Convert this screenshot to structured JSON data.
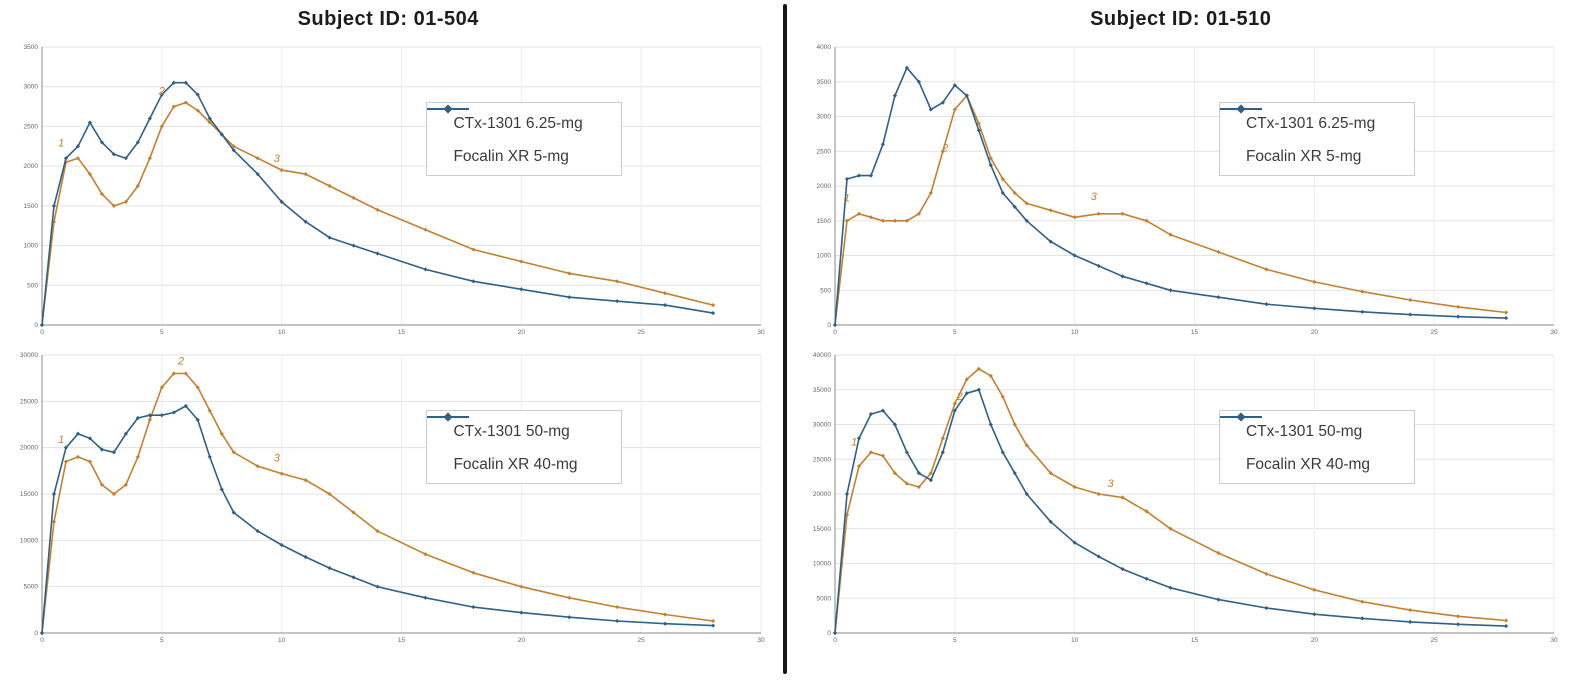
{
  "columns": [
    {
      "title": "Subject ID: 01-504"
    },
    {
      "title": "Subject ID: 01-510"
    }
  ],
  "colors": {
    "ctx_orange": "#c5802e",
    "focalin_blue": "#2e6089",
    "grid": "#e3e3e3",
    "grid_vertical": "#ececec",
    "axis": "#8a8a8a",
    "tick_text": "#666666",
    "annotation": "#c5802e"
  },
  "chart_data": [
    {
      "type": "line",
      "subject": "01-504",
      "title": "",
      "xlabel": "",
      "ylabel": "",
      "xlim": [
        0,
        30
      ],
      "xticks": [
        0,
        5,
        10,
        15,
        20,
        25,
        30
      ],
      "ylim": [
        0,
        3500
      ],
      "yticks": [
        0,
        500,
        1000,
        1500,
        2000,
        2500,
        3000,
        3500
      ],
      "grid": true,
      "legend_position": "center-right",
      "x": [
        0,
        0.5,
        1,
        1.5,
        2,
        2.5,
        3,
        3.5,
        4,
        4.5,
        5,
        5.5,
        6,
        6.5,
        7,
        7.5,
        8,
        9,
        10,
        11,
        12,
        13,
        14,
        16,
        18,
        20,
        22,
        24,
        26,
        28
      ],
      "series": [
        {
          "name": "CTx-1301 6.25-mg",
          "color": "#c5802e",
          "values": [
            0,
            1300,
            2050,
            2100,
            1900,
            1650,
            1500,
            1550,
            1750,
            2100,
            2500,
            2750,
            2800,
            2700,
            2550,
            2400,
            2250,
            2100,
            1950,
            1900,
            1750,
            1600,
            1450,
            1200,
            950,
            800,
            650,
            550,
            400,
            250
          ]
        },
        {
          "name": "Focalin XR 5-mg",
          "color": "#2e6089",
          "values": [
            0,
            1500,
            2100,
            2250,
            2550,
            2300,
            2150,
            2100,
            2300,
            2600,
            2900,
            3050,
            3050,
            2900,
            2600,
            2400,
            2200,
            1900,
            1550,
            1300,
            1100,
            1000,
            900,
            700,
            550,
            450,
            350,
            300,
            250,
            150
          ]
        }
      ],
      "annotations": [
        {
          "text": "1",
          "x": 0.8,
          "y": 2250
        },
        {
          "text": "2",
          "x": 5.0,
          "y": 2900
        },
        {
          "text": "3",
          "x": 9.8,
          "y": 2050
        }
      ]
    },
    {
      "type": "line",
      "subject": "01-504",
      "title": "",
      "xlabel": "",
      "ylabel": "",
      "xlim": [
        0,
        30
      ],
      "xticks": [
        0,
        5,
        10,
        15,
        20,
        25,
        30
      ],
      "ylim": [
        0,
        30000
      ],
      "yticks": [
        0,
        5000,
        10000,
        15000,
        20000,
        25000,
        30000
      ],
      "grid": true,
      "legend_position": "center-right",
      "x": [
        0,
        0.5,
        1,
        1.5,
        2,
        2.5,
        3,
        3.5,
        4,
        4.5,
        5,
        5.5,
        6,
        6.5,
        7,
        7.5,
        8,
        9,
        10,
        11,
        12,
        13,
        14,
        16,
        18,
        20,
        22,
        24,
        26,
        28
      ],
      "series": [
        {
          "name": "CTx-1301 50-mg",
          "color": "#c5802e",
          "values": [
            0,
            12000,
            18500,
            19000,
            18500,
            16000,
            15000,
            16000,
            19000,
            23000,
            26500,
            28000,
            28000,
            26500,
            24000,
            21500,
            19500,
            18000,
            17200,
            16500,
            15000,
            13000,
            11000,
            8500,
            6500,
            5000,
            3800,
            2800,
            2000,
            1300
          ]
        },
        {
          "name": "Focalin XR 40-mg",
          "color": "#2e6089",
          "values": [
            0,
            15000,
            20000,
            21500,
            21000,
            19800,
            19500,
            21500,
            23200,
            23500,
            23500,
            23800,
            24500,
            23000,
            19000,
            15500,
            13000,
            11000,
            9500,
            8200,
            7000,
            6000,
            5000,
            3800,
            2800,
            2200,
            1700,
            1300,
            1000,
            800
          ]
        }
      ],
      "annotations": [
        {
          "text": "1",
          "x": 0.8,
          "y": 20500
        },
        {
          "text": "2",
          "x": 5.8,
          "y": 29000
        },
        {
          "text": "3",
          "x": 9.8,
          "y": 18500
        }
      ]
    },
    {
      "type": "line",
      "subject": "01-510",
      "title": "",
      "xlabel": "",
      "ylabel": "",
      "xlim": [
        0,
        30
      ],
      "xticks": [
        0,
        5,
        10,
        15,
        20,
        25,
        30
      ],
      "ylim": [
        0,
        4000
      ],
      "yticks": [
        0,
        500,
        1000,
        1500,
        2000,
        2500,
        3000,
        3500,
        4000
      ],
      "grid": true,
      "legend_position": "center-right",
      "x": [
        0,
        0.5,
        1,
        1.5,
        2,
        2.5,
        3,
        3.5,
        4,
        4.5,
        5,
        5.5,
        6,
        6.5,
        7,
        7.5,
        8,
        9,
        10,
        11,
        12,
        13,
        14,
        16,
        18,
        20,
        22,
        24,
        26,
        28
      ],
      "series": [
        {
          "name": "CTx-1301 6.25-mg",
          "color": "#c5802e",
          "values": [
            0,
            1500,
            1600,
            1550,
            1500,
            1500,
            1500,
            1600,
            1900,
            2500,
            3100,
            3300,
            2900,
            2400,
            2100,
            1900,
            1750,
            1650,
            1550,
            1600,
            1600,
            1500,
            1300,
            1050,
            800,
            620,
            480,
            360,
            260,
            180
          ]
        },
        {
          "name": "Focalin XR 5-mg",
          "color": "#2e6089",
          "values": [
            0,
            2100,
            2150,
            2150,
            2600,
            3300,
            3700,
            3500,
            3100,
            3200,
            3450,
            3300,
            2800,
            2300,
            1900,
            1700,
            1500,
            1200,
            1000,
            850,
            700,
            600,
            500,
            400,
            300,
            240,
            190,
            150,
            120,
            100
          ]
        }
      ],
      "annotations": [
        {
          "text": "1",
          "x": 0.5,
          "y": 1780
        },
        {
          "text": "2",
          "x": 4.6,
          "y": 2500
        },
        {
          "text": "3",
          "x": 10.8,
          "y": 1800
        }
      ]
    },
    {
      "type": "line",
      "subject": "01-510",
      "title": "",
      "xlabel": "",
      "ylabel": "",
      "xlim": [
        0,
        30
      ],
      "xticks": [
        0,
        5,
        10,
        15,
        20,
        25,
        30
      ],
      "ylim": [
        0,
        40000
      ],
      "yticks": [
        0,
        5000,
        10000,
        15000,
        20000,
        25000,
        30000,
        35000,
        40000
      ],
      "grid": true,
      "legend_position": "center-right",
      "x": [
        0,
        0.5,
        1,
        1.5,
        2,
        2.5,
        3,
        3.5,
        4,
        4.5,
        5,
        5.5,
        6,
        6.5,
        7,
        7.5,
        8,
        9,
        10,
        11,
        12,
        13,
        14,
        16,
        18,
        20,
        22,
        24,
        26,
        28
      ],
      "series": [
        {
          "name": "CTx-1301 50-mg",
          "color": "#c5802e",
          "values": [
            0,
            17000,
            24000,
            26000,
            25500,
            23000,
            21500,
            21000,
            23000,
            28000,
            33000,
            36500,
            38000,
            37000,
            34000,
            30000,
            27000,
            23000,
            21000,
            20000,
            19500,
            17500,
            15000,
            11500,
            8500,
            6200,
            4500,
            3300,
            2400,
            1800
          ]
        },
        {
          "name": "Focalin XR 40-mg",
          "color": "#2e6089",
          "values": [
            0,
            20000,
            28000,
            31500,
            32000,
            30000,
            26000,
            23000,
            22000,
            26000,
            32000,
            34500,
            35000,
            30000,
            26000,
            23000,
            20000,
            16000,
            13000,
            11000,
            9200,
            7800,
            6500,
            4800,
            3600,
            2700,
            2100,
            1600,
            1250,
            1000
          ]
        }
      ],
      "annotations": [
        {
          "text": "1",
          "x": 0.8,
          "y": 27000
        },
        {
          "text": "2",
          "x": 5.2,
          "y": 33500
        },
        {
          "text": "3",
          "x": 11.5,
          "y": 21000
        }
      ]
    }
  ]
}
